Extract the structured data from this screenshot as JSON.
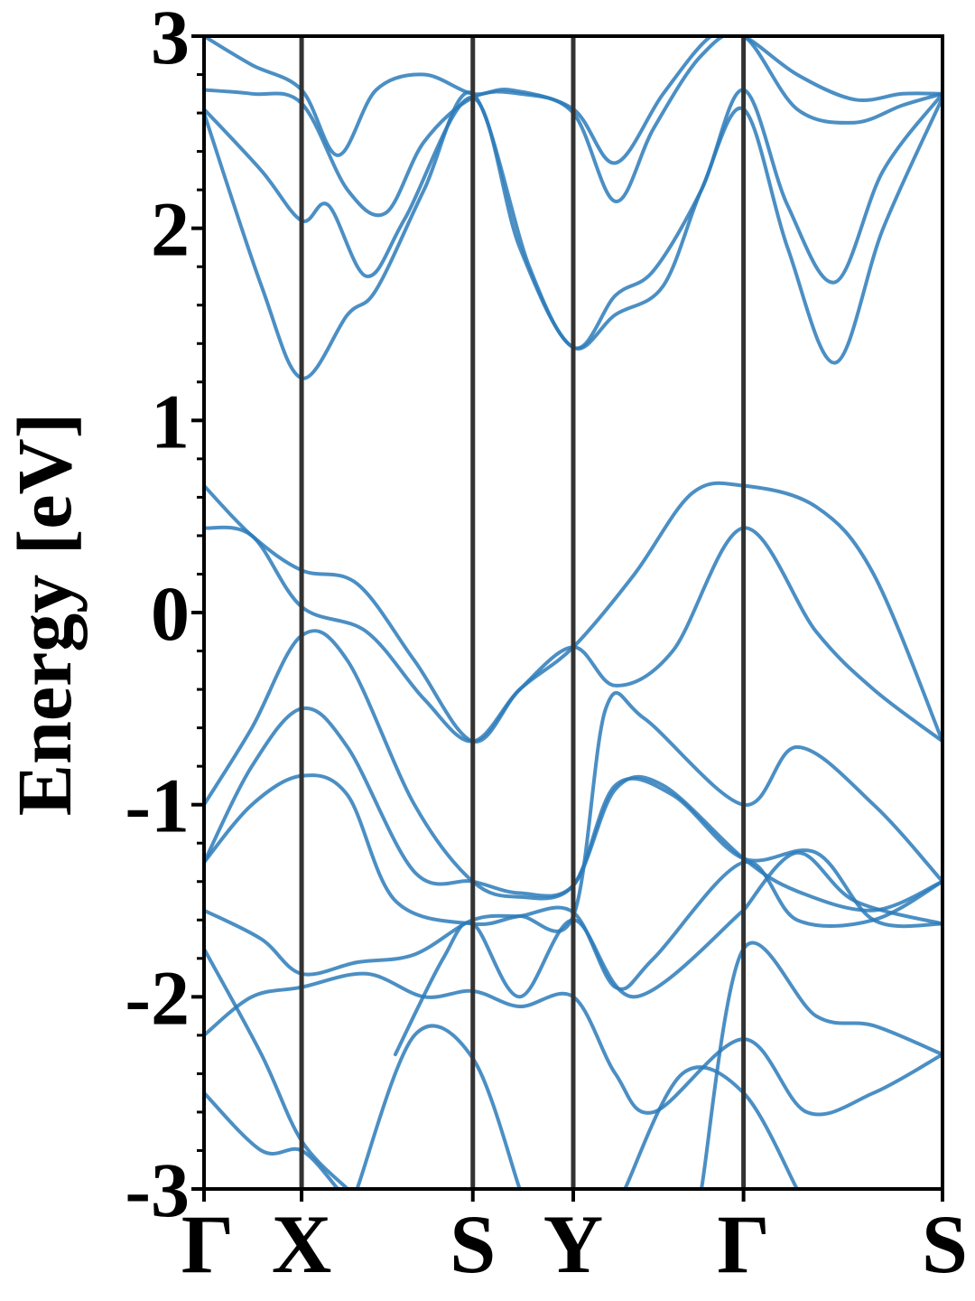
{
  "chart_data": {
    "type": "line",
    "title": "",
    "xlabel": "",
    "ylabel": "Energy [eV]",
    "ylim": [
      -3,
      3
    ],
    "xlim": [
      0,
      7.72
    ],
    "grid": false,
    "y_ticks": [
      "3",
      "2",
      "1",
      "0",
      "-1",
      "-2",
      "-3"
    ],
    "y_tick_values": [
      3,
      2,
      1,
      0,
      -1,
      -2,
      -3
    ],
    "high_symmetry_points": [
      {
        "label": "Γ",
        "x": 0
      },
      {
        "label": "X",
        "x": 1.02
      },
      {
        "label": "S",
        "x": 2.81
      },
      {
        "label": "Y",
        "x": 3.86
      },
      {
        "label": "Γ",
        "x": 5.64
      },
      {
        "label": "S",
        "x": 7.72
      }
    ],
    "line_color": "#2b7bba",
    "divider_color": "#333333",
    "series": [
      {
        "values": [
          [
            0,
            3.0
          ],
          [
            0.5,
            2.85
          ],
          [
            1.02,
            2.72
          ],
          [
            1.4,
            2.38
          ],
          [
            1.8,
            2.72
          ],
          [
            2.3,
            2.8
          ],
          [
            2.81,
            2.7
          ],
          [
            3.2,
            2.72
          ],
          [
            3.86,
            2.62
          ],
          [
            4.3,
            2.34
          ],
          [
            4.8,
            2.7
          ],
          [
            5.3,
            3.0
          ],
          [
            5.64,
            3.0
          ],
          [
            6.2,
            2.8
          ],
          [
            6.8,
            2.67
          ],
          [
            7.3,
            2.7
          ],
          [
            7.72,
            2.7
          ]
        ]
      },
      {
        "values": [
          [
            0,
            2.72
          ],
          [
            0.5,
            2.7
          ],
          [
            1.02,
            2.65
          ],
          [
            1.5,
            2.2
          ],
          [
            1.9,
            2.08
          ],
          [
            2.3,
            2.45
          ],
          [
            2.81,
            2.68
          ],
          [
            3.3,
            2.7
          ],
          [
            3.86,
            2.6
          ],
          [
            4.3,
            2.14
          ],
          [
            4.7,
            2.52
          ],
          [
            5.2,
            2.9
          ],
          [
            5.64,
            3.0
          ],
          [
            6.2,
            2.62
          ],
          [
            6.8,
            2.55
          ],
          [
            7.3,
            2.64
          ],
          [
            7.72,
            2.7
          ]
        ]
      },
      {
        "values": [
          [
            0,
            2.62
          ],
          [
            0.6,
            2.3
          ],
          [
            1.02,
            2.04
          ],
          [
            1.3,
            2.12
          ],
          [
            1.7,
            1.75
          ],
          [
            2.1,
            2.05
          ],
          [
            2.81,
            2.68
          ],
          [
            3.3,
            1.9
          ],
          [
            3.86,
            1.38
          ],
          [
            4.3,
            1.65
          ],
          [
            4.7,
            1.78
          ],
          [
            5.2,
            2.2
          ],
          [
            5.64,
            2.72
          ],
          [
            6.1,
            2.12
          ],
          [
            6.6,
            1.72
          ],
          [
            7.1,
            2.3
          ],
          [
            7.72,
            2.7
          ]
        ]
      },
      {
        "values": [
          [
            0,
            2.6
          ],
          [
            0.6,
            1.7
          ],
          [
            1.02,
            1.22
          ],
          [
            1.5,
            1.55
          ],
          [
            1.8,
            1.68
          ],
          [
            2.3,
            2.2
          ],
          [
            2.81,
            2.7
          ],
          [
            3.4,
            1.8
          ],
          [
            3.86,
            1.38
          ],
          [
            4.3,
            1.55
          ],
          [
            4.8,
            1.7
          ],
          [
            5.2,
            2.2
          ],
          [
            5.64,
            2.62
          ],
          [
            6.1,
            1.9
          ],
          [
            6.6,
            1.3
          ],
          [
            7.1,
            2.0
          ],
          [
            7.72,
            2.68
          ]
        ]
      },
      {
        "values": [
          [
            0,
            0.66
          ],
          [
            0.5,
            0.4
          ],
          [
            1.02,
            0.22
          ],
          [
            1.6,
            0.15
          ],
          [
            2.2,
            -0.25
          ],
          [
            2.81,
            -0.67
          ],
          [
            3.3,
            -0.4
          ],
          [
            3.86,
            -0.18
          ],
          [
            4.5,
            0.2
          ],
          [
            5.1,
            0.62
          ],
          [
            5.64,
            0.66
          ],
          [
            6.4,
            0.55
          ],
          [
            7.0,
            0.2
          ],
          [
            7.72,
            -0.67
          ]
        ]
      },
      {
        "values": [
          [
            0,
            0.44
          ],
          [
            0.5,
            0.4
          ],
          [
            1.02,
            0.03
          ],
          [
            1.7,
            -0.1
          ],
          [
            2.3,
            -0.45
          ],
          [
            2.81,
            -0.67
          ],
          [
            3.3,
            -0.4
          ],
          [
            3.86,
            -0.18
          ],
          [
            4.3,
            -0.38
          ],
          [
            4.9,
            -0.2
          ],
          [
            5.64,
            0.44
          ],
          [
            6.4,
            -0.1
          ],
          [
            7.0,
            -0.4
          ],
          [
            7.72,
            -0.67
          ]
        ]
      },
      {
        "values": [
          [
            0,
            -1.0
          ],
          [
            0.5,
            -0.6
          ],
          [
            1.02,
            -0.12
          ],
          [
            1.5,
            -0.25
          ],
          [
            2.2,
            -1.0
          ],
          [
            2.81,
            -1.4
          ],
          [
            3.3,
            -1.48
          ],
          [
            3.86,
            -1.42
          ],
          [
            4.3,
            -0.9
          ],
          [
            4.9,
            -0.95
          ],
          [
            5.64,
            -1.28
          ],
          [
            6.4,
            -1.25
          ],
          [
            7.0,
            -1.6
          ],
          [
            7.72,
            -1.62
          ]
        ]
      },
      {
        "values": [
          [
            0,
            -1.3
          ],
          [
            0.5,
            -0.8
          ],
          [
            1.02,
            -0.5
          ],
          [
            1.5,
            -0.7
          ],
          [
            2.2,
            -1.35
          ],
          [
            2.81,
            -1.4
          ],
          [
            3.3,
            -1.46
          ],
          [
            3.86,
            -1.42
          ],
          [
            4.3,
            -0.92
          ],
          [
            4.8,
            -0.9
          ],
          [
            5.64,
            -1.28
          ],
          [
            6.2,
            -1.45
          ],
          [
            7.0,
            -1.55
          ],
          [
            7.72,
            -1.4
          ]
        ]
      },
      {
        "values": [
          [
            0,
            -1.3
          ],
          [
            0.5,
            -1.0
          ],
          [
            1.02,
            -0.85
          ],
          [
            1.5,
            -0.95
          ],
          [
            2.0,
            -1.5
          ],
          [
            2.81,
            -1.62
          ],
          [
            3.3,
            -1.58
          ],
          [
            3.86,
            -1.56
          ],
          [
            4.3,
            -1.95
          ],
          [
            4.7,
            -1.8
          ],
          [
            5.64,
            -1.3
          ],
          [
            6.2,
            -1.6
          ],
          [
            7.0,
            -1.6
          ],
          [
            7.72,
            -1.4
          ]
        ]
      },
      {
        "values": [
          [
            0,
            -1.55
          ],
          [
            0.6,
            -1.7
          ],
          [
            1.02,
            -1.88
          ],
          [
            1.6,
            -1.82
          ],
          [
            2.2,
            -1.78
          ],
          [
            2.81,
            -1.6
          ],
          [
            3.3,
            -1.58
          ],
          [
            3.86,
            -1.58
          ],
          [
            4.2,
            -0.5
          ],
          [
            4.6,
            -0.55
          ],
          [
            5.64,
            -1.0
          ],
          [
            6.2,
            -0.7
          ],
          [
            7.0,
            -1.0
          ],
          [
            7.72,
            -1.4
          ]
        ]
      },
      {
        "values": [
          [
            0,
            -1.75
          ],
          [
            0.6,
            -2.3
          ],
          [
            1.02,
            -2.75
          ],
          [
            1.5,
            -3.0
          ]
        ]
      },
      {
        "values": [
          [
            0,
            -2.2
          ],
          [
            0.5,
            -2.0
          ],
          [
            1.02,
            -1.95
          ],
          [
            1.7,
            -1.88
          ],
          [
            2.3,
            -2.0
          ],
          [
            2.81,
            -1.97
          ],
          [
            3.3,
            -2.05
          ],
          [
            3.86,
            -2.0
          ],
          [
            4.3,
            -2.4
          ],
          [
            4.7,
            -2.6
          ],
          [
            5.64,
            -2.22
          ],
          [
            6.3,
            -2.6
          ],
          [
            7.0,
            -2.5
          ],
          [
            7.72,
            -2.3
          ]
        ]
      },
      {
        "values": [
          [
            0,
            -2.5
          ],
          [
            0.6,
            -2.8
          ],
          [
            1.02,
            -2.8
          ],
          [
            1.4,
            -3.0
          ]
        ]
      },
      {
        "values": [
          [
            1.6,
            -3.0
          ],
          [
            2.2,
            -2.2
          ],
          [
            2.81,
            -2.32
          ],
          [
            3.3,
            -3.0
          ]
        ]
      },
      {
        "values": [
          [
            4.4,
            -3.0
          ],
          [
            5.0,
            -2.4
          ],
          [
            5.64,
            -2.5
          ],
          [
            6.2,
            -3.0
          ]
        ]
      },
      {
        "values": [
          [
            5.2,
            -3.0
          ],
          [
            5.64,
            -1.75
          ],
          [
            6.4,
            -2.1
          ],
          [
            7.0,
            -2.15
          ],
          [
            7.72,
            -2.3
          ]
        ]
      },
      {
        "values": [
          [
            5.64,
            -1.55
          ],
          [
            6.2,
            -1.25
          ],
          [
            6.8,
            -1.5
          ],
          [
            7.72,
            -1.62
          ]
        ]
      },
      {
        "values": [
          [
            2.0,
            -2.3
          ],
          [
            2.5,
            -1.8
          ],
          [
            2.81,
            -1.62
          ],
          [
            3.3,
            -2.0
          ],
          [
            3.86,
            -1.6
          ],
          [
            4.5,
            -2.0
          ],
          [
            5.64,
            -1.55
          ]
        ]
      }
    ]
  }
}
